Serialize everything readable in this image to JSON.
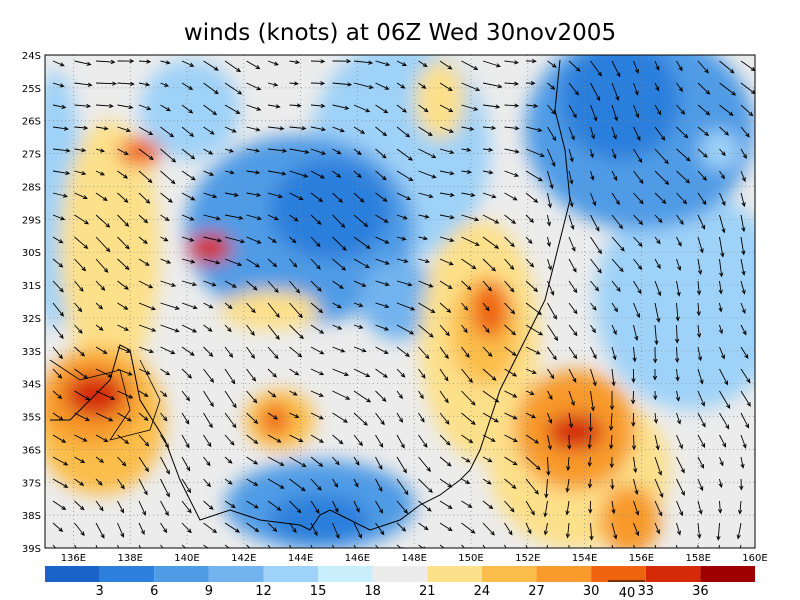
{
  "title": "winds (knots) at 06Z Wed 30nov2005",
  "lat_labels": [
    "24S",
    "25S",
    "26S",
    "27S",
    "28S",
    "29S",
    "30S",
    "31S",
    "32S",
    "33S",
    "34S",
    "35S",
    "36S",
    "37S",
    "38S",
    "39S"
  ],
  "lon_labels": [
    "136E",
    "138E",
    "140E",
    "142E",
    "144E",
    "146E",
    "148E",
    "150E",
    "152E",
    "154E",
    "156E",
    "158E",
    "160E"
  ],
  "colorbar": {
    "labels": [
      "3",
      "6",
      "9",
      "12",
      "15",
      "18",
      "21",
      "24",
      "27",
      "30",
      "33",
      "36"
    ],
    "colors": [
      "#1a63c8",
      "#2c7fdc",
      "#4f9be6",
      "#72b4ef",
      "#9fd2f8",
      "#c9eefc",
      "#ececec",
      "#fde08a",
      "#fbbd4a",
      "#f89a2c",
      "#f06410",
      "#d42a08",
      "#9e0000"
    ]
  },
  "reference_vector": "40"
}
